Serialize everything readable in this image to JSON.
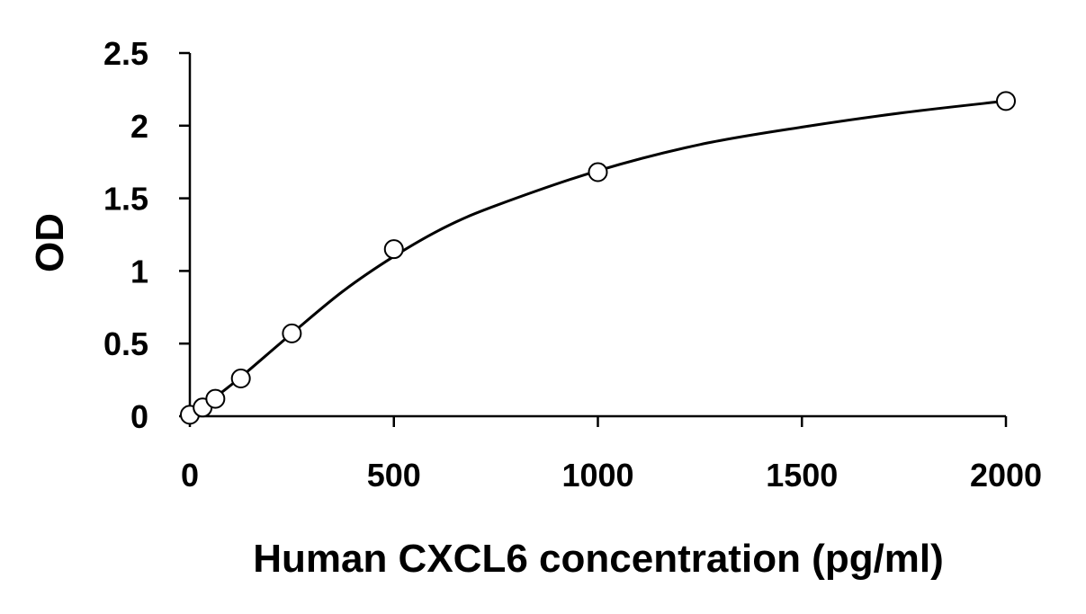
{
  "chart_data": {
    "type": "scatter",
    "title": "",
    "xlabel": "Human CXCL6 concentration (pg/ml)",
    "ylabel": "OD",
    "xlim": [
      0,
      2000
    ],
    "ylim": [
      0,
      2.5
    ],
    "x_ticks": [
      0,
      500,
      1000,
      1500,
      2000
    ],
    "y_ticks": [
      0,
      0.5,
      1,
      1.5,
      2,
      2.5
    ],
    "x_tick_labels": [
      "0",
      "500",
      "1000",
      "1500",
      "2000"
    ],
    "y_tick_labels": [
      "0",
      "0.5",
      "1",
      "1.5",
      "2",
      "2.5"
    ],
    "grid": false,
    "legend": "none",
    "series": [
      {
        "marker": "open-circle",
        "x": [
          0,
          31.25,
          62.5,
          125,
          250,
          500,
          1000,
          2000
        ],
        "y": [
          0.01,
          0.06,
          0.12,
          0.26,
          0.57,
          1.15,
          1.68,
          2.17
        ]
      }
    ],
    "fit_curve": {
      "style": "smooth solid line",
      "color": "#000000",
      "x": [
        0,
        31.25,
        62.5,
        125,
        250,
        375,
        500,
        625,
        750,
        1000,
        1250,
        1500,
        1750,
        2000
      ],
      "y": [
        0.0,
        0.06,
        0.13,
        0.27,
        0.57,
        0.86,
        1.1,
        1.3,
        1.45,
        1.69,
        1.87,
        1.99,
        2.09,
        2.17
      ]
    }
  }
}
